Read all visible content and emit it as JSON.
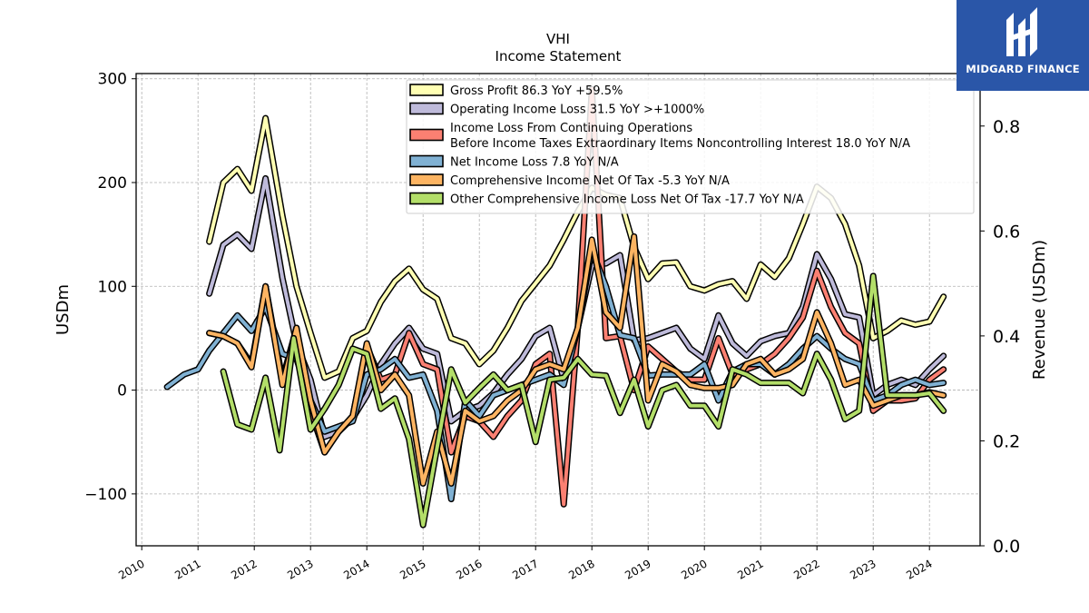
{
  "chart_data": {
    "type": "line",
    "ticker": "VHI",
    "title": "Income Statement",
    "ylabel": "USDm",
    "y2label": "Revenue (USDm)",
    "ylim": [
      -150,
      305
    ],
    "y2lim": [
      0,
      0.9
    ],
    "yticks": [
      -100,
      0,
      100,
      200,
      300
    ],
    "y2ticks": [
      "0.0",
      "0.2",
      "0.4",
      "0.6",
      "0.8"
    ],
    "xticks": [
      "2010",
      "2011",
      "2012",
      "2013",
      "2014",
      "2015",
      "2016",
      "2017",
      "2018",
      "2019",
      "2020",
      "2021",
      "2022",
      "2023",
      "2024"
    ],
    "grid": true,
    "legend_position": "upper-center",
    "series": [
      {
        "name": "Gross Profit  86.3 YoY +59.5%",
        "color": "#ffffb3",
        "x": [
          2011.2,
          2011.45,
          2011.7,
          2011.95,
          2012.2,
          2012.5,
          2012.75,
          2013.0,
          2013.25,
          2013.5,
          2013.75,
          2014.0,
          2014.25,
          2014.5,
          2014.75,
          2015.0,
          2015.25,
          2015.5,
          2015.75,
          2016.0,
          2016.25,
          2016.5,
          2016.75,
          2017.0,
          2017.25,
          2017.5,
          2017.75,
          2018.0,
          2018.25,
          2018.5,
          2018.75,
          2019.0,
          2019.25,
          2019.5,
          2019.75,
          2020.0,
          2020.25,
          2020.5,
          2020.75,
          2021.0,
          2021.25,
          2021.5,
          2021.75,
          2022.0,
          2022.25,
          2022.5,
          2022.75,
          2023.0,
          2023.25,
          2023.5,
          2023.75,
          2024.0,
          2024.25
        ],
        "values": [
          143,
          200,
          213,
          192,
          262,
          168,
          100,
          55,
          12,
          18,
          50,
          57,
          85,
          105,
          117,
          97,
          88,
          50,
          45,
          25,
          38,
          60,
          86,
          103,
          120,
          145,
          172,
          195,
          188,
          185,
          138,
          107,
          122,
          123,
          100,
          96,
          102,
          105,
          88,
          121,
          109,
          127,
          160,
          196,
          185,
          160,
          120,
          50,
          57,
          67,
          63,
          66,
          90
        ]
      },
      {
        "name": "Operating Income Loss  31.5 YoY >+1000%",
        "color": "#bebada",
        "x": [
          2011.2,
          2011.45,
          2011.7,
          2011.95,
          2012.2,
          2012.5,
          2012.75,
          2013.0,
          2013.25,
          2013.5,
          2013.75,
          2014.0,
          2014.25,
          2014.5,
          2014.75,
          2015.0,
          2015.25,
          2015.5,
          2015.75,
          2016.0,
          2016.25,
          2016.5,
          2016.75,
          2017.0,
          2017.25,
          2017.5,
          2017.75,
          2018.0,
          2018.25,
          2018.5,
          2018.75,
          2019.0,
          2019.25,
          2019.5,
          2019.75,
          2020.0,
          2020.25,
          2020.5,
          2020.75,
          2021.0,
          2021.25,
          2021.5,
          2021.75,
          2022.0,
          2022.25,
          2022.5,
          2022.75,
          2023.0,
          2023.25,
          2023.5,
          2023.75,
          2024.0,
          2024.25
        ],
        "values": [
          93,
          140,
          150,
          136,
          204,
          108,
          45,
          10,
          -45,
          -40,
          -27,
          -5,
          25,
          45,
          60,
          40,
          35,
          -30,
          -20,
          -15,
          -3,
          15,
          30,
          52,
          60,
          10,
          60,
          120,
          122,
          130,
          48,
          50,
          55,
          60,
          40,
          30,
          72,
          45,
          33,
          47,
          52,
          55,
          80,
          131,
          107,
          73,
          70,
          -5,
          5,
          10,
          5,
          20,
          33
        ]
      },
      {
        "name": "Income Loss From Continuing Operations\nBefore Income Taxes Extraordinary Items Noncontrolling Interest  18.0 YoY N/A",
        "color": "#fb8072",
        "x": [
          2011.2,
          2011.45,
          2011.7,
          2011.95,
          2012.2,
          2012.5,
          2012.75,
          2013.0,
          2013.25,
          2013.5,
          2013.75,
          2014.0,
          2014.25,
          2014.5,
          2014.75,
          2015.0,
          2015.25,
          2015.5,
          2015.75,
          2016.0,
          2016.25,
          2016.5,
          2016.75,
          2017.0,
          2017.25,
          2017.5,
          2017.75,
          2018.0,
          2018.25,
          2018.5,
          2018.75,
          2019.0,
          2019.25,
          2019.5,
          2019.75,
          2020.0,
          2020.25,
          2020.5,
          2020.75,
          2021.0,
          2021.25,
          2021.5,
          2021.75,
          2022.0,
          2022.25,
          2022.5,
          2022.75,
          2023.0,
          2023.25,
          2023.5,
          2023.75,
          2024.0,
          2024.25
        ],
        "values": [
          55,
          52,
          45,
          25,
          100,
          10,
          60,
          -20,
          -60,
          -40,
          -25,
          42,
          10,
          15,
          55,
          25,
          20,
          -60,
          -25,
          -30,
          -45,
          -25,
          -10,
          25,
          35,
          -110,
          60,
          290,
          50,
          52,
          0,
          42,
          30,
          18,
          10,
          10,
          50,
          15,
          20,
          25,
          35,
          50,
          70,
          115,
          80,
          55,
          45,
          -20,
          -10,
          -10,
          -8,
          10,
          20
        ]
      },
      {
        "name": "Net Income Loss  7.8 YoY N/A",
        "color": "#80b1d3",
        "x": [
          2010.45,
          2010.75,
          2011.0,
          2011.2,
          2011.45,
          2011.7,
          2011.95,
          2012.2,
          2012.5,
          2012.75,
          2013.0,
          2013.25,
          2013.5,
          2013.75,
          2014.0,
          2014.25,
          2014.5,
          2014.75,
          2015.0,
          2015.25,
          2015.5,
          2015.75,
          2016.0,
          2016.25,
          2016.5,
          2016.75,
          2017.0,
          2017.25,
          2017.5,
          2017.75,
          2018.0,
          2018.25,
          2018.5,
          2018.75,
          2019.0,
          2019.25,
          2019.5,
          2019.75,
          2020.0,
          2020.25,
          2020.5,
          2020.75,
          2021.0,
          2021.25,
          2021.5,
          2021.75,
          2022.0,
          2022.25,
          2022.5,
          2022.75,
          2023.0,
          2023.25,
          2023.5,
          2023.75,
          2024.0,
          2024.25
        ],
        "values": [
          3,
          15,
          20,
          38,
          55,
          72,
          57,
          80,
          35,
          30,
          -10,
          -40,
          -35,
          -30,
          15,
          20,
          30,
          12,
          15,
          -20,
          -105,
          -10,
          -25,
          -5,
          0,
          5,
          10,
          15,
          5,
          60,
          135,
          100,
          53,
          50,
          14,
          15,
          15,
          15,
          25,
          -10,
          18,
          25,
          25,
          15,
          25,
          40,
          52,
          40,
          30,
          25,
          -10,
          -5,
          5,
          10,
          5,
          7
        ]
      },
      {
        "name": "Comprehensive Income Net Of Tax  -5.3 YoY N/A",
        "color": "#fdb462",
        "x": [
          2011.2,
          2011.45,
          2011.7,
          2011.95,
          2012.2,
          2012.5,
          2012.75,
          2013.0,
          2013.25,
          2013.5,
          2013.75,
          2014.0,
          2014.25,
          2014.5,
          2014.75,
          2015.0,
          2015.25,
          2015.5,
          2015.75,
          2016.0,
          2016.25,
          2016.5,
          2016.75,
          2017.0,
          2017.25,
          2017.5,
          2017.75,
          2018.0,
          2018.25,
          2018.5,
          2018.75,
          2019.0,
          2019.25,
          2019.5,
          2019.75,
          2020.0,
          2020.25,
          2020.5,
          2020.75,
          2021.0,
          2021.25,
          2021.5,
          2021.75,
          2022.0,
          2022.25,
          2022.5,
          2022.75,
          2023.0,
          2023.25,
          2023.5,
          2023.75,
          2024.0,
          2024.25
        ],
        "values": [
          55,
          52,
          45,
          22,
          100,
          5,
          60,
          -10,
          -60,
          -40,
          -25,
          45,
          0,
          15,
          -5,
          -90,
          -40,
          -90,
          -20,
          -30,
          -25,
          -10,
          0,
          20,
          25,
          20,
          60,
          145,
          75,
          60,
          148,
          -10,
          25,
          18,
          5,
          2,
          2,
          5,
          25,
          30,
          15,
          20,
          30,
          75,
          45,
          5,
          10,
          -15,
          -10,
          -5,
          -5,
          -2,
          -5
        ]
      },
      {
        "name": "Other Comprehensive Income Loss Net Of Tax  -17.7 YoY N/A",
        "color": "#b3de69",
        "x": [
          2011.45,
          2011.7,
          2011.95,
          2012.2,
          2012.45,
          2012.7,
          2013.0,
          2013.25,
          2013.5,
          2013.75,
          2014.0,
          2014.25,
          2014.5,
          2014.75,
          2015.0,
          2015.25,
          2015.5,
          2015.75,
          2016.0,
          2016.25,
          2016.5,
          2016.75,
          2017.0,
          2017.25,
          2017.5,
          2017.75,
          2018.0,
          2018.25,
          2018.5,
          2018.75,
          2019.0,
          2019.25,
          2019.5,
          2019.75,
          2020.0,
          2020.25,
          2020.5,
          2020.75,
          2021.0,
          2021.25,
          2021.5,
          2021.75,
          2022.0,
          2022.25,
          2022.5,
          2022.75,
          2023.0,
          2023.25,
          2023.5,
          2023.75,
          2024.0,
          2024.25
        ],
        "values": [
          18,
          -33,
          -38,
          12,
          -58,
          50,
          -38,
          -18,
          5,
          40,
          35,
          -18,
          -8,
          -47,
          -130,
          -55,
          20,
          -12,
          2,
          15,
          0,
          5,
          -50,
          10,
          12,
          30,
          15,
          14,
          -22,
          10,
          -35,
          0,
          5,
          -15,
          -15,
          -35,
          20,
          15,
          7,
          7,
          7,
          -3,
          35,
          10,
          -28,
          -20,
          110,
          -5,
          -5,
          -5,
          -3,
          -20
        ]
      }
    ]
  },
  "brand": {
    "name": "MIDGARD FINANCE",
    "color": "#2a56a8"
  }
}
